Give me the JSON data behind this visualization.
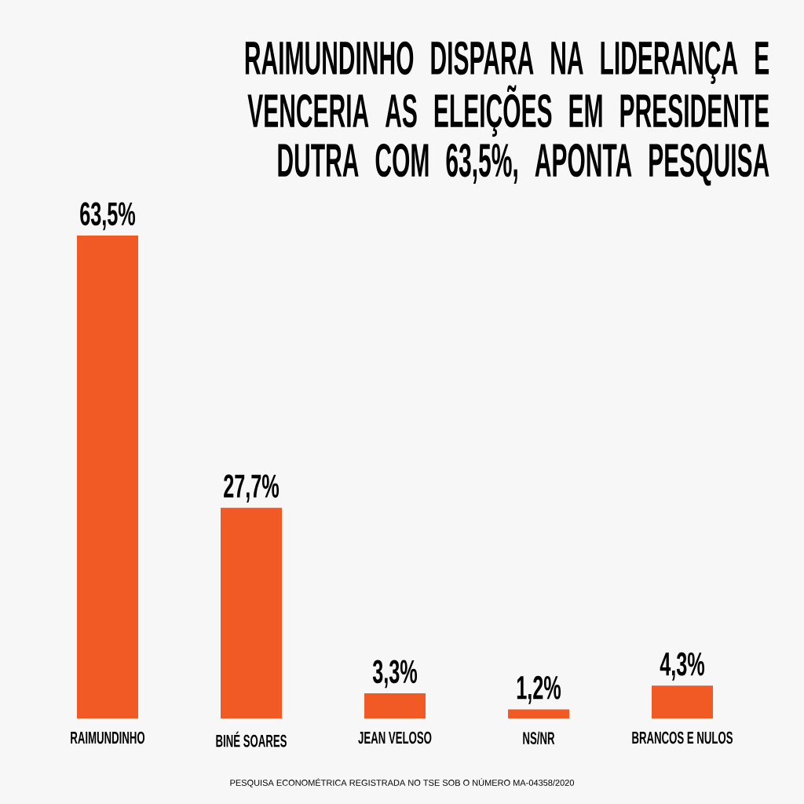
{
  "chart_data": {
    "type": "bar",
    "title": "RAIMUNDINHO DISPARA NA LIDERANÇA E VENCERIA AS ELEIÇÕES EM PRESIDENTE DUTRA COM 63,5%, APONTA PESQUISA",
    "categories": [
      "RAIMUNDINHO",
      "BINÉ SOARES",
      "JEAN VELOSO",
      "NS/NR",
      "BRANCOS E NULOS"
    ],
    "values": [
      63.5,
      27.7,
      3.3,
      1.2,
      4.3
    ],
    "value_labels": [
      "63,5%",
      "27,7%",
      "3,3%",
      "1,2%",
      "4,3%"
    ],
    "color": "#f15a24",
    "annotations": [
      "PESQUISA ECONOMÉTRICA REGISTRADA NO TSE SOB O NÚMERO MA-04358/2020"
    ]
  }
}
